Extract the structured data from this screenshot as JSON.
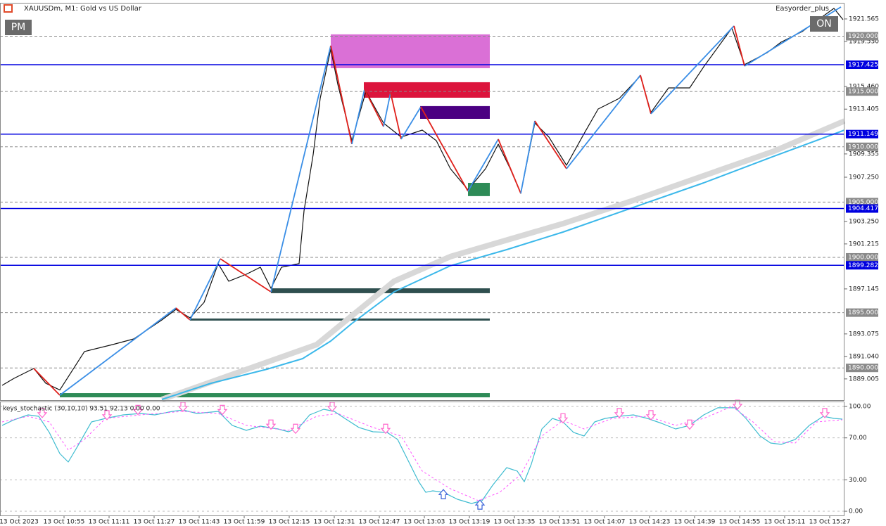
{
  "chart_data": [
    {
      "type": "line",
      "title": "XAUUSDm, M1:  Gold vs US Dollar",
      "expert": "Easyorder_plus",
      "buttons": [
        "PM",
        "ON"
      ],
      "xlim": [
        -6.75,
        293.25
      ],
      "ylim": [
        1887.15,
        1922.96
      ],
      "xticks": [
        {
          "value": 0,
          "label": "13 Oct 2023"
        },
        {
          "value": 16,
          "label": "13 Oct 10:55"
        },
        {
          "value": 32,
          "label": "13 Oct 11:11"
        },
        {
          "value": 48,
          "label": "13 Oct 11:27"
        },
        {
          "value": 64,
          "label": "13 Oct 11:43"
        },
        {
          "value": 80,
          "label": "13 Oct 11:59"
        },
        {
          "value": 96,
          "label": "13 Oct 12:15"
        },
        {
          "value": 112,
          "label": "13 Oct 12:31"
        },
        {
          "value": 128,
          "label": "13 Oct 12:47"
        },
        {
          "value": 144,
          "label": "13 Oct 13:03"
        },
        {
          "value": 160,
          "label": "13 Oct 13:19"
        },
        {
          "value": 176,
          "label": "13 Oct 13:35"
        },
        {
          "value": 192,
          "label": "13 Oct 13:51"
        },
        {
          "value": 208,
          "label": "13 Oct 14:07"
        },
        {
          "value": 224,
          "label": "13 Oct 14:23"
        },
        {
          "value": 240,
          "label": "13 Oct 14:39"
        },
        {
          "value": 256,
          "label": "13 Oct 14:55"
        },
        {
          "value": 272,
          "label": "13 Oct 15:11"
        },
        {
          "value": 288,
          "label": "13 Oct 15:27"
        }
      ],
      "yticks": [
        1921.565,
        {
          "value": 1919.53,
          "label": "1919.530"
        },
        {
          "value": 1915.46,
          "label": "1915.460"
        },
        1913.405,
        1909.355,
        {
          "value": 1907.25,
          "label": "1907.250"
        },
        {
          "value": 1903.25,
          "label": "1903.250"
        },
        1901.215,
        1897.145,
        1893.075,
        {
          "value": 1891.04,
          "label": "1891.040"
        },
        1889.005
      ],
      "levels": {
        "color": "#8a8a8a",
        "values": [
          {
            "value": 1920,
            "label": "1920.000"
          },
          {
            "value": 1915,
            "label": "1915.000"
          },
          {
            "value": 1910,
            "label": "1910.000"
          },
          {
            "value": 1905,
            "label": "1905.000"
          },
          {
            "value": 1900,
            "label": "1900.000"
          },
          {
            "value": 1895,
            "label": "1895.000"
          },
          {
            "value": 1890,
            "label": "1890.000"
          }
        ]
      },
      "blue_levels": {
        "color": "#0000e0",
        "values": [
          1917.425,
          1911.149,
          1904.417,
          1899.282
        ]
      },
      "zones": [
        {
          "from": 110.75,
          "to": 167.25,
          "top": 1920.17,
          "bottom": 1917.11,
          "color": "#da70d6"
        },
        {
          "from": 122.5,
          "to": 167.25,
          "top": 1915.84,
          "bottom": 1914.44,
          "color": "#dc143c"
        },
        {
          "from": 142.5,
          "to": 167.25,
          "top": 1913.68,
          "bottom": 1912.53,
          "color": "#4b0082"
        },
        {
          "from": 159.5,
          "to": 167.25,
          "top": 1906.74,
          "bottom": 1905.54,
          "color": "#2e8b57"
        },
        {
          "from": 89.5,
          "to": 167.25,
          "top": 1897.2,
          "bottom": 1896.76,
          "color": "#2f4f4f"
        },
        {
          "from": 60.75,
          "to": 167.25,
          "top": 1894.47,
          "bottom": 1894.28,
          "color": "#2f4f4f"
        },
        {
          "from": 14.5,
          "to": 167.25,
          "top": 1887.72,
          "bottom": 1887.34,
          "color": "#2e8b57"
        }
      ],
      "series": [
        {
          "color": "#d8d8d8",
          "width": 8,
          "x": [
            50.75,
            105.75,
            133.25,
            153.25,
            193.25,
            218.25,
            243.25,
            268.25,
            293.25
          ],
          "values": [
            1887.15,
            1892.11,
            1897.84,
            1900.07,
            1903.05,
            1905.15,
            1907.38,
            1909.61,
            1912.34
          ]
        },
        {
          "color": "#3cb8ea",
          "width": 2,
          "x": [
            50.75,
            68.25,
            88.25,
            100.75,
            110.75,
            118.25,
            133.25,
            153.25,
            173.25,
            193.25,
            218.25,
            243.25,
            268.25,
            293.25
          ],
          "values": [
            1887.15,
            1888.61,
            1889.89,
            1890.84,
            1892.43,
            1894.02,
            1896.88,
            1899.24,
            1900.7,
            1902.29,
            1904.52,
            1906.74,
            1909.15,
            1911.51
          ]
        },
        {
          "color": "#111111",
          "width": 1.2,
          "x": [
            -6,
            -1.75,
            5.25,
            9.5,
            14.5,
            23.25,
            33.25,
            40.75,
            50.75,
            55.75,
            60.75,
            65.75,
            70.75,
            74.5,
            80.75,
            85.75,
            89.5,
            93.25,
            99.5,
            101.25,
            104.5,
            107,
            110.75,
            113.25,
            118.25,
            123.25,
            129.5,
            135.75,
            143.25,
            148.25,
            153.25,
            159.5,
            165.75,
            170.25,
            174.5,
            178.25,
            183.25,
            188.25,
            194.5,
            200.75,
            205.75,
            213.25,
            220.75,
            224.5,
            230.75,
            238.25,
            243.25,
            253.25,
            257.75,
            265.75,
            270.75,
            278.25,
            283.25,
            289.5,
            292.75
          ],
          "values": [
            1888.42,
            1889.06,
            1889.95,
            1888.61,
            1888.0,
            1891.48,
            1892.11,
            1892.62,
            1894.34,
            1895.29,
            1894.53,
            1895.93,
            1899.43,
            1897.84,
            1898.47,
            1899.11,
            1897.2,
            1899.11,
            1899.43,
            1904.2,
            1909.29,
            1914.38,
            1918.83,
            1915.65,
            1910.56,
            1915.01,
            1912.15,
            1910.88,
            1911.51,
            1910.56,
            1908.02,
            1906.11,
            1908.02,
            1910.24,
            1908.02,
            1905.79,
            1912.15,
            1910.88,
            1908.33,
            1911.2,
            1913.42,
            1914.38,
            1916.41,
            1913.1,
            1915.33,
            1915.33,
            1917.24,
            1920.74,
            1917.43,
            1918.51,
            1919.47,
            1920.42,
            1921.37,
            1922.52,
            1921.5
          ]
        }
      ],
      "zigzag": {
        "up_color": "#3a8ee6",
        "down_color": "#e0201b",
        "x": [
          5.25,
          14.5,
          55.75,
          60.75,
          71.5,
          89.5,
          110.75,
          118.25,
          122.75,
          129.5,
          132,
          135.75,
          142.75,
          159.5,
          170.25,
          178.25,
          183.25,
          194.5,
          220.75,
          224.5,
          254,
          257.75,
          292
        ],
        "values": [
          1889.95,
          1887.53,
          1895.42,
          1894.34,
          1899.87,
          1896.88,
          1919.15,
          1910.24,
          1915.2,
          1911.83,
          1914.89,
          1910.69,
          1913.61,
          1905.98,
          1910.69,
          1905.79,
          1912.34,
          1908.02,
          1916.48,
          1912.98,
          1920.93,
          1917.3,
          1922.65
        ]
      }
    },
    {
      "type": "line",
      "title": "keys_stochastic (30,10,10) 93.51 92.13 0.00 0.00",
      "ylim": [
        -4,
        104
      ],
      "yticks": [
        {
          "value": 100,
          "label": "100.00"
        },
        {
          "value": 70,
          "label": "70.00"
        },
        {
          "value": 30,
          "label": "30.00"
        },
        {
          "value": 0,
          "label": "0.00"
        }
      ],
      "series": [
        {
          "color": "#3fbcd0",
          "width": 1.2,
          "dash": false,
          "x": [
            -6,
            -1.75,
            3.25,
            7,
            10.75,
            14.5,
            17.5,
            20.75,
            25.75,
            30.75,
            37,
            43.25,
            48.25,
            54.5,
            58.25,
            63.25,
            70.75,
            75.75,
            80.75,
            85.75,
            92,
            95.75,
            99.5,
            103.25,
            108.25,
            112,
            115.75,
            120.75,
            125.75,
            130.75,
            134.5,
            138.25,
            142,
            144.5,
            147,
            150.75,
            155.75,
            160.75,
            164.5,
            168.25,
            173.25,
            177,
            179.5,
            182,
            185.75,
            189.5,
            193.25,
            197,
            200.75,
            204.5,
            208.25,
            213.25,
            218.25,
            223.25,
            228.25,
            233.25,
            238.25,
            243.25,
            248.25,
            254.5,
            258.25,
            263.25,
            267,
            270.75,
            275.75,
            280.75,
            285.75,
            289.5,
            292.5
          ],
          "values": [
            81.9,
            87.2,
            91.9,
            90.6,
            75.2,
            55.0,
            47.0,
            61.7,
            85.2,
            88.6,
            91.9,
            93.3,
            91.9,
            95.3,
            96.6,
            93.3,
            95.3,
            81.9,
            77.2,
            81.2,
            78.5,
            75.8,
            79.9,
            91.9,
            97.3,
            95.3,
            88.6,
            79.9,
            75.8,
            75.2,
            68.5,
            48.3,
            28.2,
            18.1,
            19.5,
            18.1,
            11.4,
            7.4,
            10.1,
            24.8,
            41.6,
            38.3,
            28.2,
            45.0,
            78.5,
            88.6,
            85.2,
            75.2,
            71.8,
            85.2,
            88.6,
            90.6,
            91.9,
            88.6,
            83.9,
            78.5,
            81.9,
            91.9,
            98.7,
            98.7,
            88.6,
            71.8,
            65.1,
            63.8,
            68.5,
            81.9,
            90.6,
            88.6,
            87.9
          ]
        },
        {
          "color": "#ff55ff",
          "width": 1,
          "dash": true,
          "x": [
            -6,
            3.25,
            10.75,
            17.5,
            23.25,
            30.75,
            43.25,
            58.25,
            70.75,
            80.75,
            95.75,
            105.75,
            113.25,
            125.75,
            135.75,
            143.25,
            153.25,
            163.25,
            170.75,
            178.25,
            185.75,
            193.25,
            200.75,
            210.75,
            223.25,
            233.25,
            243.25,
            253.25,
            260.75,
            268.25,
            275.75,
            283.25,
            292.5
          ],
          "values": [
            85.2,
            90.6,
            85.2,
            58.4,
            68.5,
            88.6,
            91.9,
            95.3,
            93.3,
            81.9,
            77.2,
            90.6,
            93.3,
            79.9,
            71.8,
            38.3,
            21.5,
            10.1,
            18.1,
            34.9,
            71.8,
            86.6,
            78.5,
            88.6,
            90.6,
            81.9,
            88.6,
            100,
            85.2,
            66.4,
            65.1,
            85.2,
            87.2
          ]
        }
      ],
      "down_arrows": {
        "color": "#ff66cc",
        "x": [
          8.25,
          31.25,
          42.25,
          58.25,
          72.25,
          89.5,
          98.25,
          111.25,
          130.25,
          193.25,
          213.25,
          224.5,
          238.25,
          255.25,
          286.25
        ],
        "values": [
          90,
          88,
          93,
          96,
          93,
          79,
          75,
          96,
          75,
          85,
          90,
          88,
          79,
          98,
          90
        ]
      },
      "up_arrows": {
        "color": "#3a62d8",
        "x": [
          150.75,
          163.75
        ],
        "values": [
          20,
          10
        ]
      }
    }
  ]
}
